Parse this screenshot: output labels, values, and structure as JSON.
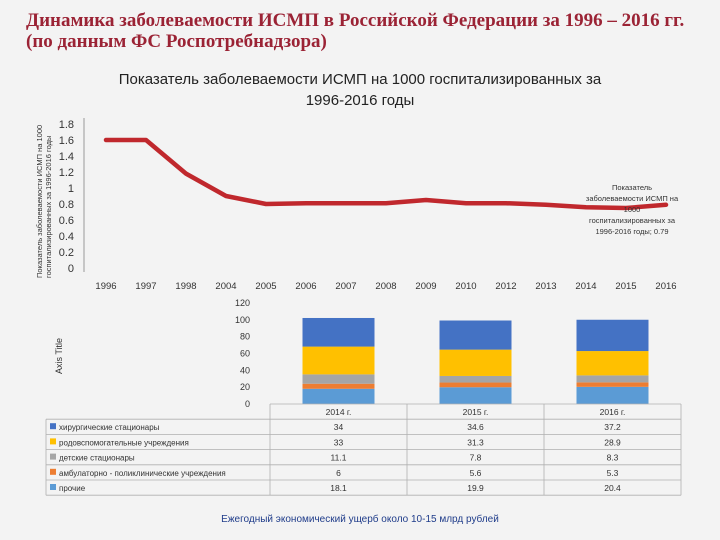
{
  "slide": {
    "title": "Динамика заболеваемости ИСМП в Российской Федерации  за 1996 – 2016 гг. (по данным ФС Роспотребнадзора)",
    "footer": "Ежегодный экономический ущерб около 10-15 млрд рублей"
  },
  "chart_data": [
    {
      "type": "line",
      "title": "Показатель заболеваемости ИСМП на 1000 госпитализированных за 1996-2016 годы",
      "ylabel": "Показатель заболеваемости ИСМП на 1000 госпитализированных за 1996-2016 годы",
      "xlabel": "",
      "x": [
        "1996",
        "1997",
        "1998",
        "2004",
        "2005",
        "2006",
        "2007",
        "2008",
        "2009",
        "2010",
        "2012",
        "2013",
        "2014",
        "2015",
        "2016"
      ],
      "yticks": [
        "1.8",
        "1.6",
        "1.4",
        "1.2",
        "1",
        "0.8",
        "0.6",
        "0.4",
        "0.2",
        "0"
      ],
      "ylim": [
        0,
        1.8
      ],
      "grid": false,
      "series": [
        {
          "name": "Показатель заболеваемости ИСМП на 1000 госпитализированных за 1996-2016 годы",
          "values": [
            1.6,
            1.6,
            1.18,
            0.9,
            0.8,
            0.81,
            0.81,
            0.81,
            0.85,
            0.81,
            0.81,
            0.79,
            0.76,
            0.75,
            0.79
          ],
          "color": "#c0282d"
        }
      ],
      "annotation": "Показатель заболеваемости ИСМП на 1000 госпитализированных за 1996-2016 годы; 0.79"
    },
    {
      "type": "bar",
      "stacked": true,
      "ylabel": "Axis Title",
      "ylim": [
        0,
        120
      ],
      "yticks": [
        "120",
        "100",
        "80",
        "60",
        "40",
        "20",
        "0"
      ],
      "categories": [
        "2014 г.",
        "2015 г.",
        "2016 г."
      ],
      "series": [
        {
          "name": "прочие",
          "values": [
            18.1,
            19.9,
            20.4
          ],
          "color": "#5b9bd5"
        },
        {
          "name": "амбулаторно - поликлинические учреждения",
          "values": [
            6,
            5.6,
            5.3
          ],
          "color": "#ed7d31"
        },
        {
          "name": "детские стационары",
          "values": [
            11.1,
            7.8,
            8.3
          ],
          "color": "#a5a5a5"
        },
        {
          "name": "родовспомогательные учреждения",
          "values": [
            33,
            31.3,
            28.9
          ],
          "color": "#ffc000"
        },
        {
          "name": "хирургические стационары",
          "values": [
            34,
            34.6,
            37.2
          ],
          "color": "#4472c4"
        }
      ],
      "table_order": [
        "хирургические стационары",
        "родовспомогательные учреждения",
        "детские стационары",
        "амбулаторно - поликлинические учреждения",
        "прочие"
      ],
      "table_values": [
        [
          "34",
          "34.6",
          "37.2"
        ],
        [
          "33",
          "31.3",
          "28.9"
        ],
        [
          "11.1",
          "7.8",
          "8.3"
        ],
        [
          "6",
          "5.6",
          "5.3"
        ],
        [
          "18.1",
          "19.9",
          "20.4"
        ]
      ]
    }
  ]
}
